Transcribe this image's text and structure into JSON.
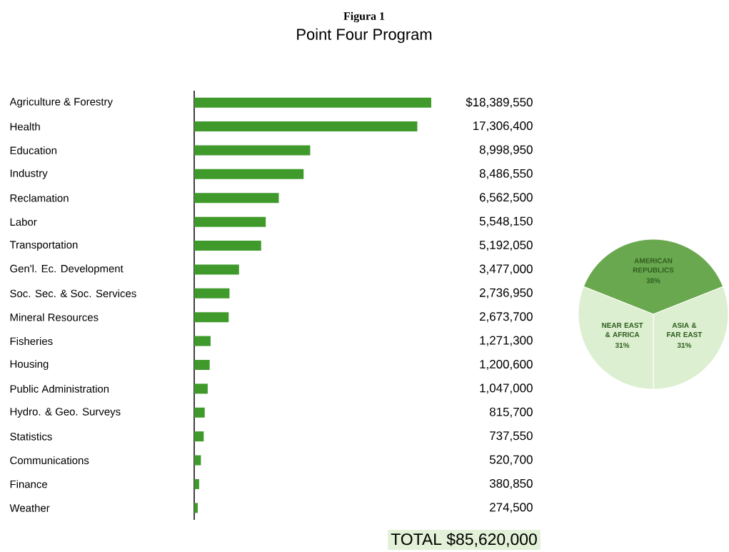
{
  "chart_data": [
    {
      "type": "bar",
      "orientation": "horizontal",
      "title": "Figura 1",
      "subtitle": "Point Four Program",
      "categories": [
        "Agriculture & Forestry",
        "Health",
        "Education",
        "Industry",
        "Reclamation",
        "Labor",
        "Transportation",
        "Gen'l. Ec. Development",
        "Soc. Sec. & Soc. Services",
        "Mineral Resources",
        "Fisheries",
        "Housing",
        "Public Administration",
        "Hydro. & Geo. Surveys",
        "Statistics",
        "Communications",
        "Finance",
        "Weather"
      ],
      "values": [
        18389550,
        17306400,
        8998950,
        8486550,
        6562500,
        5548150,
        5192050,
        3477000,
        2736950,
        2673700,
        1271300,
        1200600,
        1047000,
        815700,
        737550,
        520700,
        380850,
        274500
      ],
      "value_labels": [
        "$18,389,550",
        "17,306,400",
        "8,998,950",
        "8,486,550",
        "6,562,500",
        "5,548,150",
        "5,192,050",
        "3,477,000",
        "2,736,950",
        "2,673,700",
        "1,271,300",
        "1,200,600",
        "1,047,000",
        "815,700",
        "737,550",
        "520,700",
        "380,850",
        "274,500"
      ],
      "color": "#3f9a2b",
      "annotations": [
        "TOTAL $85,620,000"
      ]
    },
    {
      "type": "pie",
      "categories": [
        "AMERICAN REPUBLICS",
        "ASIA & FAR EAST",
        "NEAR EAST & AFRICA"
      ],
      "values": [
        38,
        31,
        31
      ],
      "value_labels": [
        "38%",
        "31%",
        "31%"
      ],
      "colors": [
        "#6aa84f",
        "#dcefd0",
        "#dcefd0"
      ]
    }
  ]
}
